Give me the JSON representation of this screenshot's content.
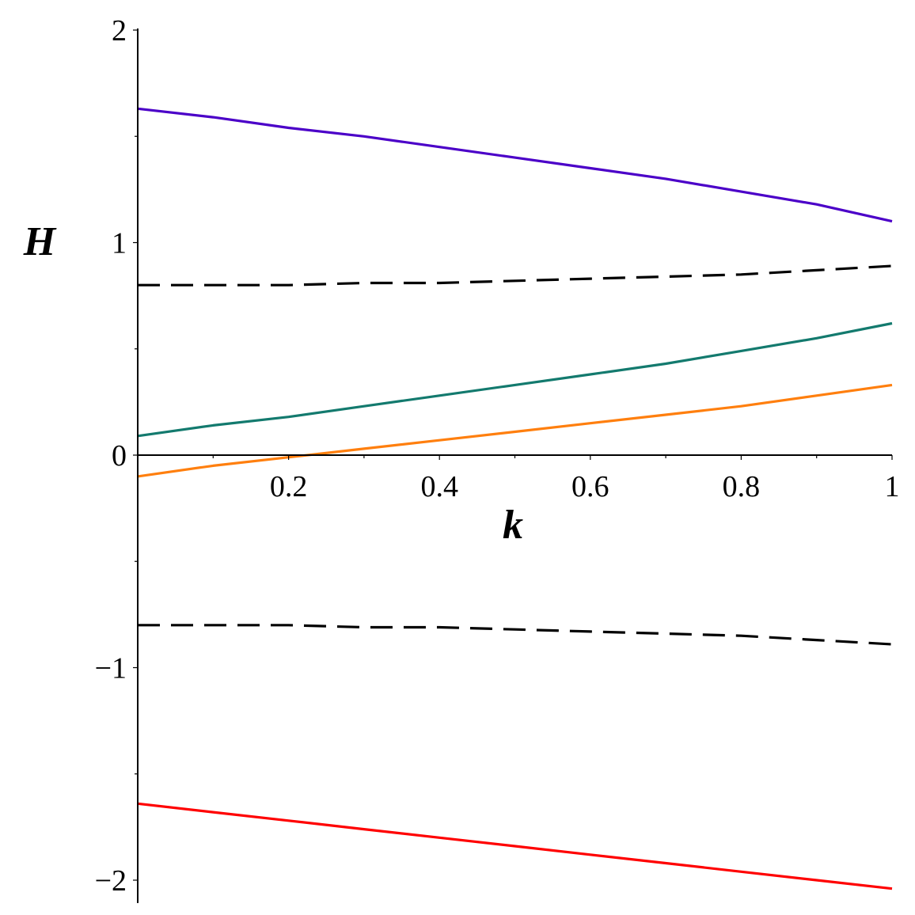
{
  "chart_data": {
    "type": "line",
    "title": "",
    "xlabel": "k",
    "ylabel": "H",
    "xlim": [
      0,
      1
    ],
    "ylim": [
      -2.1,
      2
    ],
    "x_ticks": [
      {
        "value": 0.2,
        "label": "0.2"
      },
      {
        "value": 0.4,
        "label": "0.4"
      },
      {
        "value": 0.6,
        "label": "0.6"
      },
      {
        "value": 0.8,
        "label": "0.8"
      },
      {
        "value": 1.0,
        "label": "1"
      }
    ],
    "y_ticks": [
      {
        "value": 2,
        "label": "2"
      },
      {
        "value": 1,
        "label": "1"
      },
      {
        "value": 0,
        "label": "0"
      },
      {
        "value": -1,
        "label": "−1"
      },
      {
        "value": -2,
        "label": "−2"
      }
    ],
    "x_minor_step": 0.1,
    "y_minor_step": 0.5,
    "grid": false,
    "legend": "none",
    "x": [
      0,
      0.1,
      0.2,
      0.3,
      0.4,
      0.5,
      0.6,
      0.7,
      0.8,
      0.9,
      1.0
    ],
    "series": [
      {
        "color": "#4B00C8",
        "style": "solid",
        "values": [
          1.63,
          1.59,
          1.54,
          1.5,
          1.45,
          1.4,
          1.35,
          1.3,
          1.24,
          1.18,
          1.1
        ]
      },
      {
        "color": "#000000",
        "style": "dashed",
        "values": [
          0.8,
          0.8,
          0.8,
          0.81,
          0.81,
          0.82,
          0.83,
          0.84,
          0.85,
          0.87,
          0.89
        ]
      },
      {
        "color": "#137A6E",
        "style": "solid",
        "values": [
          0.09,
          0.14,
          0.18,
          0.23,
          0.28,
          0.33,
          0.38,
          0.43,
          0.49,
          0.55,
          0.62
        ]
      },
      {
        "color": "#FF7F0E",
        "style": "solid",
        "values": [
          -0.1,
          -0.05,
          -0.01,
          0.03,
          0.07,
          0.11,
          0.15,
          0.19,
          0.23,
          0.28,
          0.33
        ]
      },
      {
        "color": "#000000",
        "style": "dashed",
        "values": [
          -0.8,
          -0.8,
          -0.8,
          -0.81,
          -0.81,
          -0.82,
          -0.83,
          -0.84,
          -0.85,
          -0.87,
          -0.89
        ]
      },
      {
        "color": "#FF0000",
        "style": "solid",
        "values": [
          -1.64,
          -1.68,
          -1.72,
          -1.76,
          -1.8,
          -1.84,
          -1.88,
          -1.92,
          -1.96,
          -2.0,
          -2.04
        ]
      }
    ]
  }
}
